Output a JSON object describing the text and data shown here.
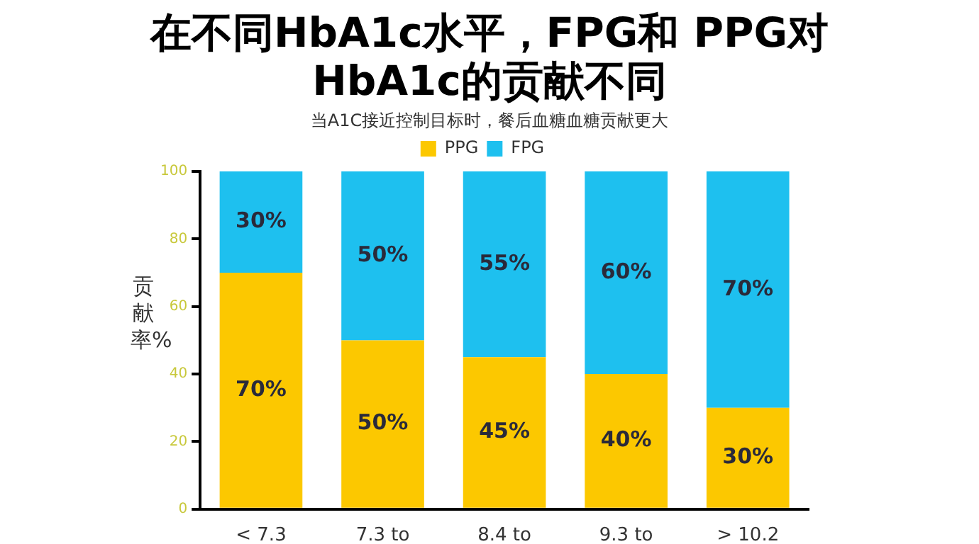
{
  "chart_data": {
    "type": "bar",
    "title": "在不同HbA1c水平，FPG和 PPG对\nHbA1c的贡献不同",
    "subtitle": "当A1C接近控制目标时，餐后血糖血糖贡献更大",
    "ylabel": "贡献率%",
    "categories": [
      "< 7.3",
      "7.3 to",
      "8.4 to",
      "9.3 to",
      "> 10.2"
    ],
    "stacked": true,
    "series": [
      {
        "name": "PPG",
        "color": "#fcc800",
        "values": [
          70,
          50,
          45,
          40,
          30
        ],
        "value_labels": [
          "70%",
          "50%",
          "45%",
          "40%",
          "30%"
        ]
      },
      {
        "name": "FPG",
        "color": "#1ec0ef",
        "values": [
          30,
          50,
          55,
          60,
          70
        ],
        "value_labels": [
          "30%",
          "50%",
          "55%",
          "60%",
          "70%"
        ]
      }
    ],
    "ylim": [
      0,
      100
    ],
    "yticks": [
      0,
      20,
      40,
      60,
      80,
      100
    ],
    "legend": "top"
  }
}
